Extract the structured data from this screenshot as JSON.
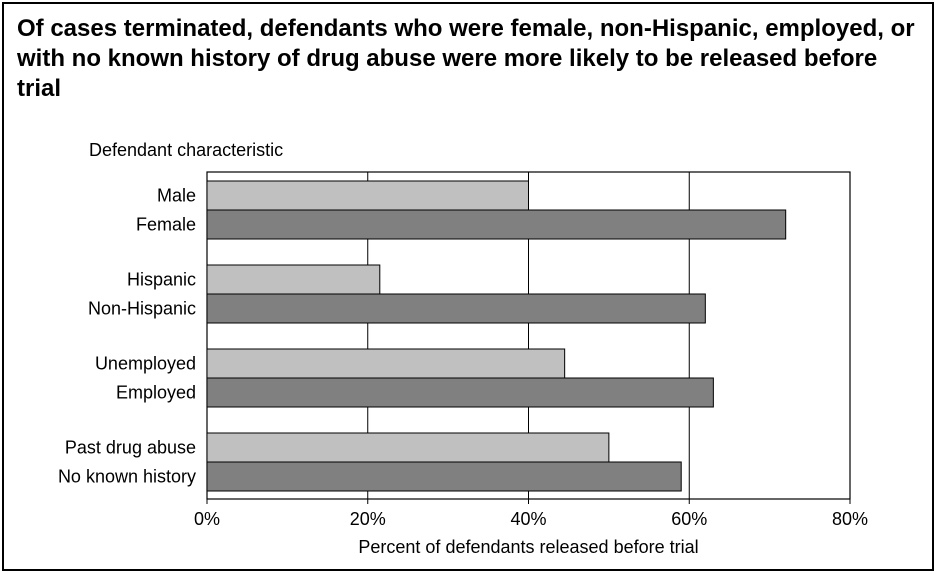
{
  "title": "Of cases terminated, defendants who were female, non-Hispanic, employed, or with no known history of drug abuse were more likely to be released before trial",
  "chart_data": {
    "type": "bar",
    "orientation": "horizontal",
    "title": "Of cases terminated, defendants who were female, non-Hispanic, employed, or with no known history of drug abuse were more likely to be released before trial",
    "ylabel": "Defendant characteristic",
    "xlabel": "Percent of defendants released before trial",
    "xlim": [
      0,
      80
    ],
    "xticks": [
      "0%",
      "20%",
      "40%",
      "60%",
      "80%"
    ],
    "grid": "vertical",
    "colors": {
      "light": "#c0c0c0",
      "dark": "#808080"
    },
    "categories": [
      "Male",
      "Female",
      "Hispanic",
      "Non-Hispanic",
      "Unemployed",
      "Employed",
      "Past drug abuse",
      "No known history"
    ],
    "values": [
      40,
      72,
      21.5,
      62,
      44.5,
      63,
      50,
      59
    ],
    "shade": [
      "light",
      "dark",
      "light",
      "dark",
      "light",
      "dark",
      "light",
      "dark"
    ]
  }
}
